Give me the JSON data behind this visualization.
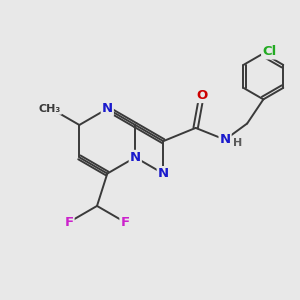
{
  "bg_color": "#e8e8e8",
  "bond_color": "#3a3a3a",
  "bond_width": 1.4,
  "atom_colors": {
    "N": "#1a1acc",
    "O": "#cc0000",
    "F": "#cc22cc",
    "Cl": "#22aa22",
    "C": "#3a3a3a",
    "H": "#5a5a5a"
  },
  "font_size": 9.5,
  "small_font": 8.0
}
